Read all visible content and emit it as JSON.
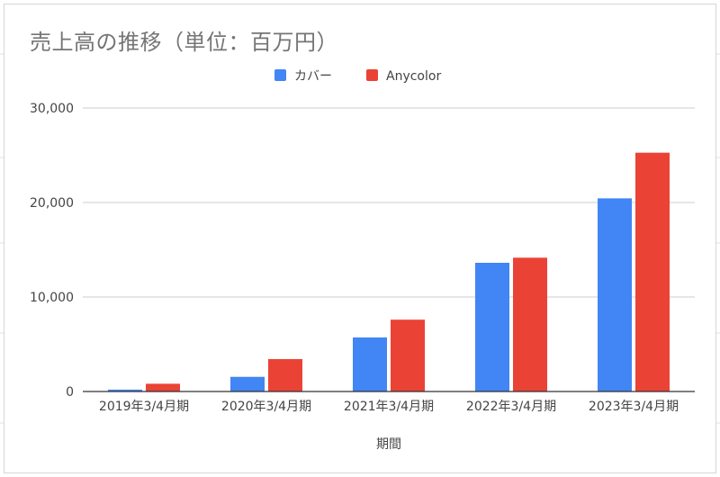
{
  "chart_data": {
    "type": "bar",
    "title": "売上高の推移（単位：百万円）",
    "xlabel": "期間",
    "ylabel": "",
    "categories": [
      "2019年3/4月期",
      "2020年3/4月期",
      "2021年3/4月期",
      "2022年3/4月期",
      "2023年3/4月期"
    ],
    "series": [
      {
        "name": "カバー",
        "color": "#4285f4",
        "values": [
          200,
          1550,
          5720,
          13620,
          20440
        ]
      },
      {
        "name": "Anycolor",
        "color": "#ea4335",
        "values": [
          820,
          3430,
          7600,
          14160,
          25270
        ]
      }
    ],
    "ylim": [
      0,
      30000
    ],
    "yticks": [
      0,
      10000,
      20000,
      30000
    ],
    "ytick_labels": [
      "0",
      "10,000",
      "20,000",
      "30,000"
    ],
    "grid": true,
    "legend_position": "top"
  }
}
